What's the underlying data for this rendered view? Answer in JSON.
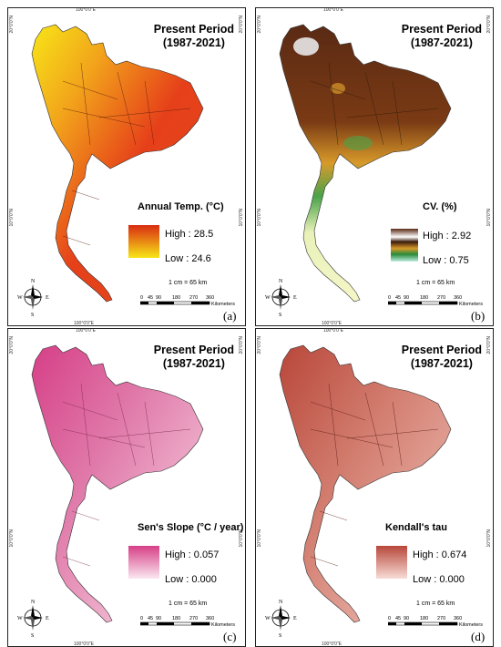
{
  "coords": {
    "lon": "100°0'0\"E",
    "lat20": "20°0'0\"N",
    "lat10": "10°0'0\"N"
  },
  "title_line1": "Present Period",
  "title_line2": "(1987-2021)",
  "scale_label": "1 cm = 65 km",
  "scale_ticks": [
    "0",
    "45",
    "90",
    "180",
    "270",
    "360"
  ],
  "scale_unit": "Kilometers",
  "compass_letters": {
    "n": "N",
    "s": "S",
    "e": "E",
    "w": "W"
  },
  "panels": [
    {
      "tag": "(a)",
      "legend_title": "Annual Temp. (°C)",
      "high": "High : 28.5",
      "low": "Low : 24.6",
      "colors": {
        "high": "#d92b12",
        "low": "#f7e617"
      }
    },
    {
      "tag": "(b)",
      "legend_title": "CV. (%)",
      "high": "High : 2.92",
      "low": "Low : 0.75",
      "colors": {
        "high": "#5a2a14",
        "mid": "#f2d42a",
        "low": "#bfeee0"
      }
    },
    {
      "tag": "(c)",
      "legend_title": "Sen's Slope (°C / year)",
      "high": "High : 0.057",
      "low": "Low : 0.000",
      "colors": {
        "high": "#d63f87",
        "low": "#fbe7f0"
      }
    },
    {
      "tag": "(d)",
      "legend_title": "Kendall's tau",
      "high": "High : 0.674",
      "low": "Low : 0.000",
      "colors": {
        "high": "#b8473a",
        "low": "#f7dcd6"
      }
    }
  ]
}
